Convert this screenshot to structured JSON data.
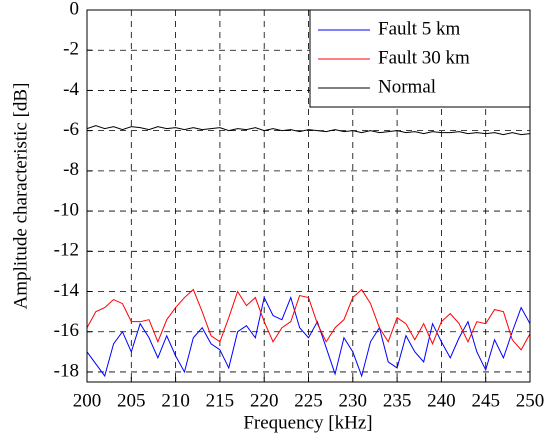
{
  "chart_data": {
    "type": "line",
    "x_label": "Frequency [kHz]",
    "y_label": "Amplitude characteristic [dB]",
    "x": [
      200,
      201,
      202,
      203,
      204,
      205,
      206,
      207,
      208,
      209,
      210,
      211,
      212,
      213,
      214,
      215,
      216,
      217,
      218,
      219,
      220,
      221,
      222,
      223,
      224,
      225,
      226,
      227,
      228,
      229,
      230,
      231,
      232,
      233,
      234,
      235,
      236,
      237,
      238,
      239,
      240,
      241,
      242,
      243,
      244,
      245,
      246,
      247,
      248,
      249,
      250
    ],
    "series": [
      {
        "name": "Fault 5 km",
        "color": "#0000ff",
        "values": [
          -17.0,
          -17.6,
          -18.2,
          -16.6,
          -16.0,
          -17.0,
          -15.6,
          -16.3,
          -17.3,
          -16.2,
          -17.2,
          -18.0,
          -16.3,
          -15.8,
          -16.6,
          -16.9,
          -17.8,
          -16.0,
          -15.7,
          -16.3,
          -14.3,
          -15.2,
          -15.4,
          -14.3,
          -15.8,
          -16.3,
          -15.5,
          -16.8,
          -18.1,
          -16.3,
          -17.0,
          -18.2,
          -16.5,
          -15.8,
          -17.5,
          -17.8,
          -16.2,
          -17.0,
          -17.5,
          -15.6,
          -16.5,
          -17.3,
          -16.3,
          -15.5,
          -17.0,
          -17.9,
          -16.4,
          -17.3,
          -16.0,
          -14.8,
          -15.6
        ]
      },
      {
        "name": "Fault 30 km",
        "color": "#ff0000",
        "values": [
          -15.8,
          -15.0,
          -14.8,
          -14.4,
          -14.6,
          -15.5,
          -15.5,
          -15.4,
          -16.5,
          -15.4,
          -14.8,
          -14.3,
          -13.9,
          -15.0,
          -16.2,
          -16.5,
          -15.3,
          -14.0,
          -14.7,
          -14.3,
          -15.5,
          -16.5,
          -15.8,
          -15.5,
          -14.2,
          -14.3,
          -15.6,
          -16.5,
          -15.8,
          -15.4,
          -14.3,
          -13.9,
          -14.6,
          -15.8,
          -16.5,
          -15.3,
          -15.6,
          -16.4,
          -15.6,
          -16.6,
          -15.5,
          -15.1,
          -15.6,
          -16.5,
          -15.5,
          -15.6,
          -14.9,
          -15.0,
          -16.4,
          -16.9,
          -16.1
        ]
      },
      {
        "name": "Normal",
        "color": "#000000",
        "values": [
          -5.9,
          -5.75,
          -5.9,
          -5.8,
          -5.95,
          -5.8,
          -5.85,
          -5.95,
          -5.8,
          -5.9,
          -5.85,
          -5.95,
          -5.85,
          -5.95,
          -5.9,
          -5.85,
          -6.0,
          -5.9,
          -5.95,
          -5.85,
          -6.0,
          -5.9,
          -6.0,
          -5.95,
          -6.05,
          -5.95,
          -6.0,
          -6.05,
          -5.95,
          -6.05,
          -6.0,
          -6.1,
          -6.0,
          -6.1,
          -6.05,
          -6.0,
          -6.1,
          -6.05,
          -6.15,
          -6.05,
          -6.1,
          -6.1,
          -6.05,
          -6.15,
          -6.1,
          -6.15,
          -6.1,
          -6.2,
          -6.1,
          -6.2,
          -6.15
        ]
      }
    ],
    "xlim": [
      200,
      250
    ],
    "ylim": [
      -18.5,
      0
    ],
    "xticks": [
      200,
      205,
      210,
      215,
      220,
      225,
      230,
      235,
      240,
      245,
      250
    ],
    "yticks": [
      0,
      -2,
      -4,
      -6,
      -8,
      -10,
      -12,
      -14,
      -16,
      -18
    ],
    "grid": true,
    "legend": "upper right"
  }
}
